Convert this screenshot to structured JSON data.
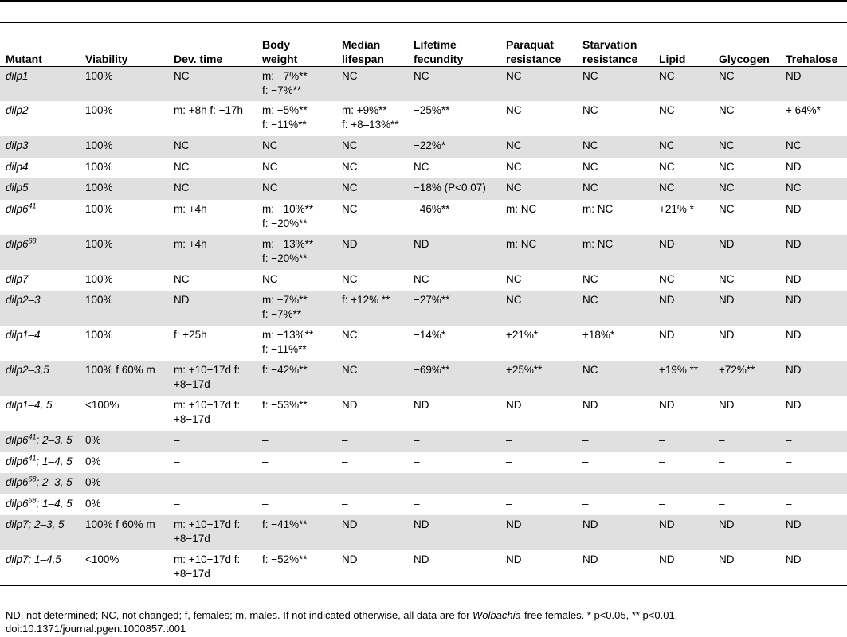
{
  "headers": [
    "Mutant",
    "Viability",
    "Dev. time",
    "Body\nweight",
    "Median\nlifespan",
    "Lifetime\nfecundity",
    "Paraquat\nresistance",
    "Starvation\nresistance",
    "Lipid",
    "Glycogen",
    "Trehalose"
  ],
  "rows": [
    {
      "mutant": "dilp1",
      "sup": "",
      "suffix": "",
      "cells": [
        "100%",
        "NC",
        "m: −7%**\nf: −7%**",
        "NC",
        "NC",
        "NC",
        "NC",
        "NC",
        "NC",
        "ND"
      ]
    },
    {
      "mutant": "dilp2",
      "sup": "",
      "suffix": "",
      "cells": [
        "100%",
        "m: +8h f: +17h",
        "m: −5%**\nf: −11%**",
        "m: +9%**\nf: +8–13%**",
        "−25%**",
        "NC",
        "NC",
        "NC",
        "NC",
        "+ 64%*"
      ]
    },
    {
      "mutant": "dilp3",
      "sup": "",
      "suffix": "",
      "cells": [
        "100%",
        "NC",
        "NC",
        "NC",
        "−22%*",
        "NC",
        "NC",
        "NC",
        "NC",
        "NC"
      ]
    },
    {
      "mutant": "dilp4",
      "sup": "",
      "suffix": "",
      "cells": [
        "100%",
        "NC",
        "NC",
        "NC",
        "NC",
        "NC",
        "NC",
        "NC",
        "NC",
        "ND"
      ]
    },
    {
      "mutant": "dilp5",
      "sup": "",
      "suffix": "",
      "cells": [
        "100%",
        "NC",
        "NC",
        "NC",
        "−18% (P<0,07)",
        "NC",
        "NC",
        "NC",
        "NC",
        "NC"
      ]
    },
    {
      "mutant": "dilp6",
      "sup": "41",
      "suffix": "",
      "cells": [
        "100%",
        "m: +4h",
        "m: −10%**\nf: −20%**",
        "NC",
        "−46%**",
        "m: NC",
        "m: NC",
        "+21% *",
        "NC",
        "ND"
      ]
    },
    {
      "mutant": "dilp6",
      "sup": "68",
      "suffix": "",
      "cells": [
        "100%",
        "m: +4h",
        "m: −13%**\nf: −20%**",
        "ND",
        "ND",
        "m: NC",
        "m: NC",
        "ND",
        "ND",
        "ND"
      ]
    },
    {
      "mutant": "dilp7",
      "sup": "",
      "suffix": "",
      "cells": [
        "100%",
        "NC",
        "NC",
        "NC",
        "NC",
        "NC",
        "NC",
        "NC",
        "NC",
        "ND"
      ]
    },
    {
      "mutant": "dilp2–3",
      "sup": "",
      "suffix": "",
      "cells": [
        "100%",
        "ND",
        "m: −7%**\nf: −7%**",
        "f: +12% **",
        "−27%**",
        "NC",
        "NC",
        "ND",
        "ND",
        "ND"
      ]
    },
    {
      "mutant": "dilp1–4",
      "sup": "",
      "suffix": "",
      "cells": [
        "100%",
        "f: +25h",
        "m: −13%**\nf: −11%**",
        "NC",
        "−14%*",
        "+21%*",
        "+18%*",
        "ND",
        "ND",
        "ND"
      ]
    },
    {
      "mutant": "dilp2–3,5",
      "sup": "",
      "suffix": "",
      "cells": [
        "100% f 60% m",
        "m: +10−17d f:\n+8−17d",
        "f: −42%**",
        "NC",
        "−69%**",
        "+25%**",
        "NC",
        "+19% **",
        "+72%**",
        "ND"
      ]
    },
    {
      "mutant": "dilp1–4, 5",
      "sup": "",
      "suffix": "",
      "cells": [
        "<100%",
        "m: +10−17d f:\n+8−17d",
        "f: −53%**",
        "ND",
        "ND",
        "ND",
        "ND",
        "ND",
        "ND",
        "ND"
      ]
    },
    {
      "mutant": "dilp6",
      "sup": "41",
      "suffix": "; 2–3, 5",
      "cells": [
        "0%",
        "–",
        "–",
        "–",
        "–",
        "–",
        "–",
        "–",
        "–",
        "–"
      ]
    },
    {
      "mutant": "dilp6",
      "sup": "41",
      "suffix": "; 1–4, 5",
      "cells": [
        "0%",
        "–",
        "–",
        "–",
        "–",
        "–",
        "–",
        "–",
        "–",
        "–"
      ]
    },
    {
      "mutant": "dilp6",
      "sup": "68",
      "suffix": "; 2–3, 5",
      "cells": [
        "0%",
        "–",
        "–",
        "–",
        "–",
        "–",
        "–",
        "–",
        "–",
        "–"
      ]
    },
    {
      "mutant": "dilp6",
      "sup": "68",
      "suffix": "; 1–4, 5",
      "cells": [
        "0%",
        "–",
        "–",
        "–",
        "–",
        "–",
        "–",
        "–",
        "–",
        "–"
      ]
    },
    {
      "mutant": "dilp7; 2–3, 5",
      "sup": "",
      "suffix": "",
      "cells": [
        "100% f 60% m",
        "m: +10−17d f:\n+8−17d",
        "f: −41%**",
        "ND",
        "ND",
        "ND",
        "ND",
        "ND",
        "ND",
        "ND"
      ]
    },
    {
      "mutant": "dilp7; 1–4,5",
      "sup": "",
      "suffix": "",
      "cells": [
        "<100%",
        "m: +10−17d f:\n+8−17d",
        "f: −52%**",
        "ND",
        "ND",
        "ND",
        "ND",
        "ND",
        "ND",
        "ND"
      ]
    }
  ],
  "footnote": {
    "before": "ND, not determined; NC, not changed; f, females; m, males. If not indicated otherwise, all data are for ",
    "italic": "Wolbachia",
    "after": "-free females. * p<0.05, ** p<0.01.",
    "doi": "doi:10.1371/journal.pgen.1000857.t001"
  }
}
